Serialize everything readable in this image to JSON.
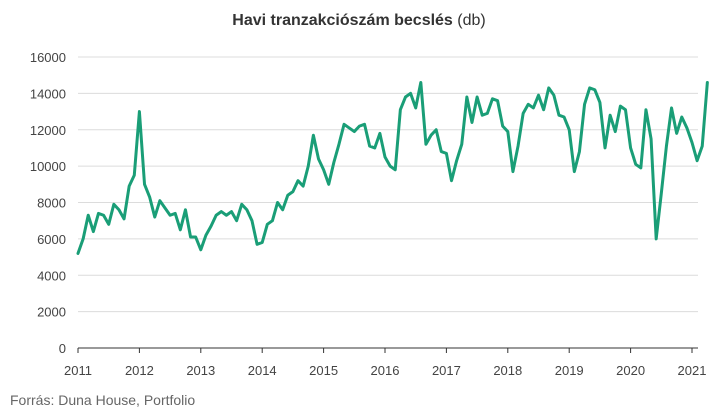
{
  "chart_data": {
    "type": "line",
    "title": "Havi tranzakciószám becslés",
    "title_unit": "(db)",
    "source": "Forrás: Duna House, Portfolio",
    "series": [
      {
        "color": "#1a9e77",
        "start": "2011-01",
        "values": [
          5200,
          6000,
          7300,
          6400,
          7400,
          7300,
          6800,
          7900,
          7600,
          7100,
          8900,
          9500,
          13000,
          9000,
          8300,
          7200,
          8100,
          7700,
          7300,
          7400,
          6500,
          7600,
          6100,
          6100,
          5400,
          6200,
          6700,
          7300,
          7500,
          7300,
          7500,
          7000,
          7900,
          7600,
          7000,
          5700,
          5800,
          6800,
          7000,
          8000,
          7600,
          8400,
          8600,
          9200,
          8900,
          10000,
          11700,
          10400,
          9800,
          9000,
          10200,
          11200,
          12300,
          12100,
          11900,
          12200,
          12300,
          11100,
          11000,
          11800,
          10500,
          10000,
          9800,
          13100,
          13800,
          14000,
          13200,
          14600,
          11200,
          11700,
          12000,
          10800,
          10700,
          9200,
          10300,
          11200,
          13800,
          12400,
          13800,
          12800,
          12900,
          13700,
          13600,
          12200,
          11900,
          9700,
          11100,
          12900,
          13400,
          13200,
          13900,
          13100,
          14300,
          13900,
          12800,
          12700,
          12000,
          9700,
          10800,
          13400,
          14300,
          14200,
          13500,
          11000,
          12800,
          11900,
          13300,
          13100,
          11000,
          10100,
          9900,
          13100,
          11500,
          6000,
          8500,
          11100,
          13200,
          11800,
          12700,
          12100,
          11300,
          10300,
          11100,
          14600
        ]
      }
    ],
    "x_ticks": [
      "2011",
      "2012",
      "2013",
      "2014",
      "2015",
      "2016",
      "2017",
      "2018",
      "2019",
      "2020",
      "2021"
    ],
    "y_ticks": [
      "0",
      "2000",
      "4000",
      "6000",
      "8000",
      "10000",
      "12000",
      "14000",
      "16000"
    ],
    "ylim": [
      0,
      16000
    ],
    "grid": "horizontal"
  }
}
